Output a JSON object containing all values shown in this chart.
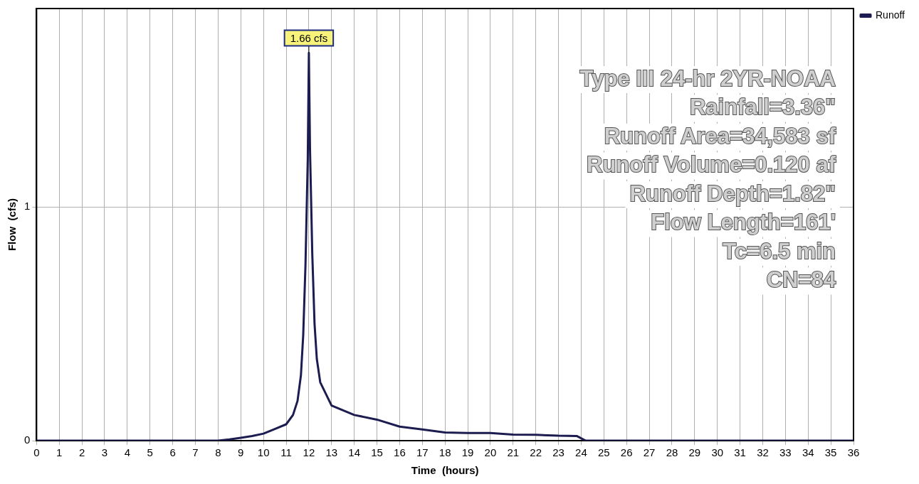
{
  "chart_data": {
    "type": "line",
    "xlabel": "Time  (hours)",
    "ylabel": "Flow  (cfs)",
    "x": [
      0,
      8,
      8.5,
      9,
      9.5,
      10,
      10.5,
      11,
      11.3,
      11.5,
      11.65,
      11.75,
      11.85,
      11.95,
      12,
      12.05,
      12.15,
      12.25,
      12.35,
      12.5,
      13,
      14,
      15,
      16,
      17,
      18,
      19,
      20,
      21,
      22,
      23,
      23.8,
      24.2,
      36
    ],
    "series": [
      {
        "name": "Runoff",
        "color": "#1c1c50",
        "values": [
          0,
          0,
          0.005,
          0.012,
          0.02,
          0.03,
          0.05,
          0.07,
          0.11,
          0.17,
          0.28,
          0.45,
          0.75,
          1.2,
          1.66,
          1.25,
          0.8,
          0.5,
          0.35,
          0.25,
          0.15,
          0.11,
          0.09,
          0.06,
          0.048,
          0.035,
          0.033,
          0.033,
          0.026,
          0.025,
          0.021,
          0.02,
          0,
          0
        ]
      }
    ],
    "xlim": [
      0,
      36
    ],
    "xticks": [
      0,
      1,
      2,
      3,
      4,
      5,
      6,
      7,
      8,
      9,
      10,
      11,
      12,
      13,
      14,
      15,
      16,
      17,
      18,
      19,
      20,
      21,
      22,
      23,
      24,
      25,
      26,
      27,
      28,
      29,
      30,
      31,
      32,
      33,
      34,
      35,
      36
    ],
    "ylim": [
      0,
      1.85
    ],
    "yticks": [
      0,
      1
    ],
    "grid": true,
    "legend": "top right",
    "marker": "none",
    "line_style": "solid",
    "annotations": [
      {
        "text": "1.66 cfs",
        "x": 12,
        "y": 1.66
      },
      "Type III 24-hr 2YR-NOAA",
      "Rainfall=3.36\"",
      "Runoff Area=34,583 sf",
      "Runoff Volume=0.120 af",
      "Runoff Depth=1.82\"",
      "Flow Length=161'",
      "Tc=6.5 min",
      "CN=84"
    ]
  }
}
